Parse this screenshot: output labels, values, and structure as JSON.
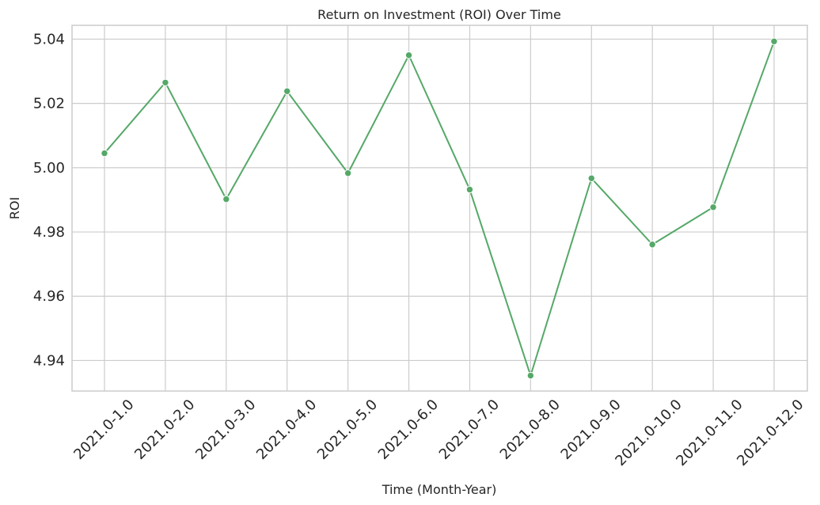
{
  "chart_data": {
    "type": "line",
    "title": "Return on Investment (ROI) Over Time",
    "xlabel": "Time (Month-Year)",
    "ylabel": "ROI",
    "categories": [
      "2021.0-1.0",
      "2021.0-2.0",
      "2021.0-3.0",
      "2021.0-4.0",
      "2021.0-5.0",
      "2021.0-6.0",
      "2021.0-7.0",
      "2021.0-8.0",
      "2021.0-9.0",
      "2021.0-10.0",
      "2021.0-11.0",
      "2021.0-12.0"
    ],
    "series": [
      {
        "values": [
          5.0045,
          5.0265,
          4.9902,
          5.0238,
          4.9983,
          5.035,
          4.9932,
          4.9353,
          4.9967,
          4.9761,
          4.9877,
          5.0393
        ],
        "color": "#55a868"
      }
    ],
    "ylim": [
      4.9305,
      5.0443
    ],
    "yticks": [
      "4.94",
      "4.96",
      "4.98",
      "5.00",
      "5.02",
      "5.04"
    ],
    "grid": true,
    "legend": "none"
  }
}
